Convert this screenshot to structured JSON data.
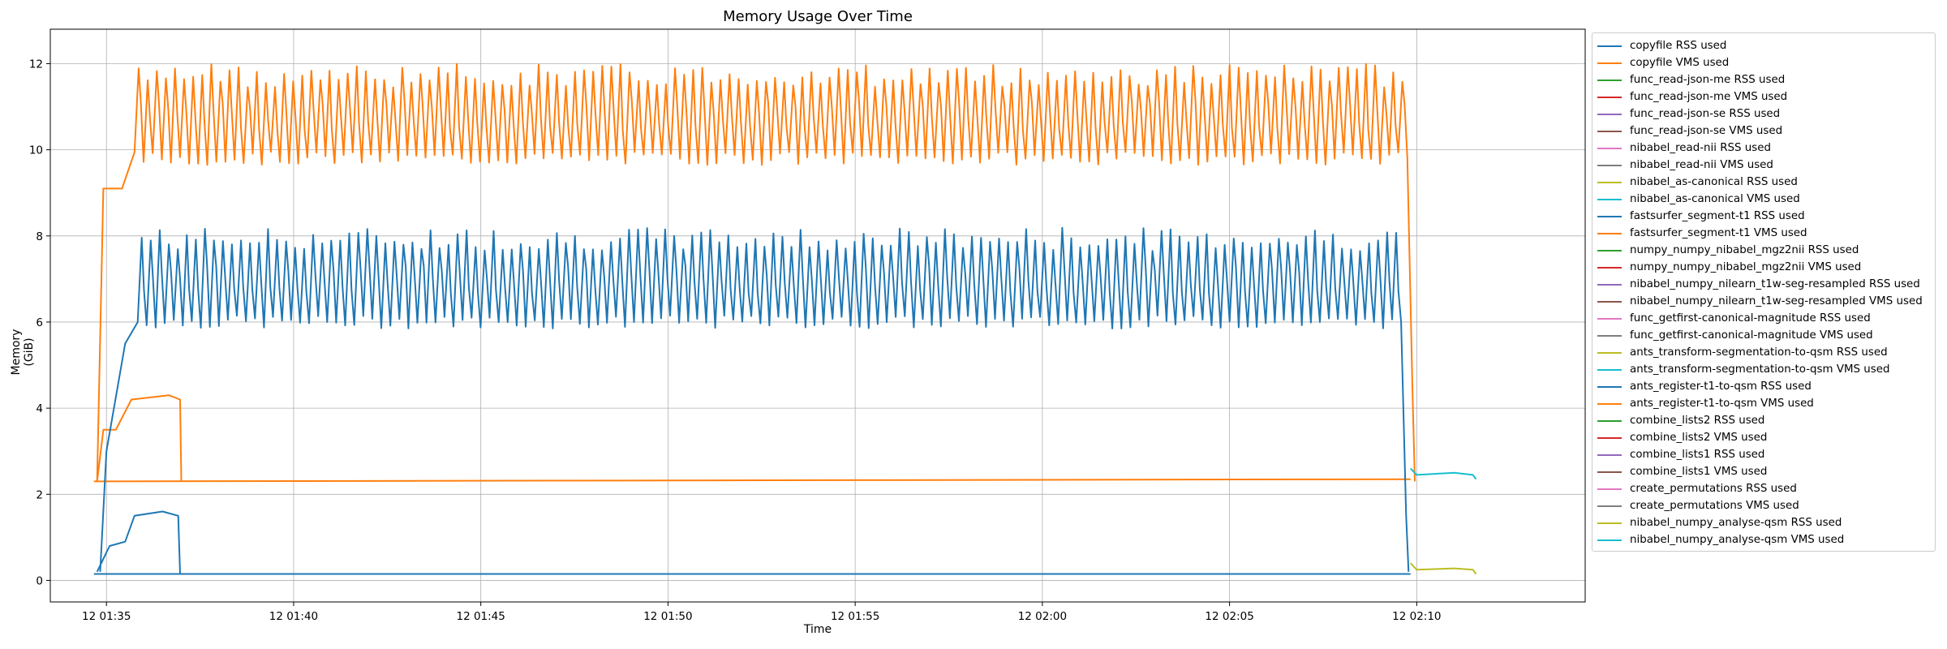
{
  "chart_data": {
    "type": "line",
    "title": "Memory Usage Over Time",
    "xlabel": "Time",
    "ylabel": "Memory (GiB)",
    "grid": true,
    "legend_position": "outside-right",
    "x_time_range": [
      "01:33:30",
      "02:14:30"
    ],
    "ylim": [
      -0.5,
      12.8
    ],
    "x_ticks": [
      "12 01:35",
      "12 01:40",
      "12 01:45",
      "12 01:50",
      "12 01:55",
      "12 02:00",
      "12 02:05",
      "12 02:10"
    ],
    "y_ticks": [
      0,
      2,
      4,
      6,
      8,
      10,
      12
    ],
    "series": [
      {
        "name": "copyfile RSS used",
        "color": "#1f77b4",
        "points": [
          [
            "01:34:40",
            0.15
          ],
          [
            "02:09:50",
            0.15
          ]
        ]
      },
      {
        "name": "copyfile VMS used",
        "color": "#ff7f0e",
        "points": [
          [
            "01:34:40",
            2.3
          ],
          [
            "02:09:50",
            2.35
          ]
        ]
      },
      {
        "name": "func_read-json-me RSS used",
        "color": "#2ca02c",
        "points": []
      },
      {
        "name": "func_read-json-me VMS used",
        "color": "#d62728",
        "points": []
      },
      {
        "name": "func_read-json-se RSS used",
        "color": "#9467bd",
        "points": []
      },
      {
        "name": "func_read-json-se VMS used",
        "color": "#8c564b",
        "points": []
      },
      {
        "name": "nibabel_read-nii RSS used",
        "color": "#e377c2",
        "points": []
      },
      {
        "name": "nibabel_read-nii VMS used",
        "color": "#7f7f7f",
        "points": []
      },
      {
        "name": "nibabel_as-canonical RSS used",
        "color": "#bcbd22",
        "points": []
      },
      {
        "name": "nibabel_as-canonical VMS used",
        "color": "#17becf",
        "points": []
      },
      {
        "name": "fastsurfer_segment-t1 RSS used",
        "color": "#1f77b4",
        "points": [
          [
            "01:34:45",
            0.2
          ],
          [
            "01:35:05",
            0.8
          ],
          [
            "01:35:30",
            0.9
          ],
          [
            "01:35:45",
            1.5
          ],
          [
            "01:36:30",
            1.6
          ],
          [
            "01:36:55",
            1.5
          ],
          [
            "01:36:58",
            0.15
          ]
        ]
      },
      {
        "name": "fastsurfer_segment-t1 VMS used",
        "color": "#ff7f0e",
        "points": [
          [
            "01:34:45",
            2.3
          ],
          [
            "01:34:55",
            3.5
          ],
          [
            "01:35:15",
            3.5
          ],
          [
            "01:35:40",
            4.2
          ],
          [
            "01:36:40",
            4.3
          ],
          [
            "01:36:58",
            4.2
          ],
          [
            "01:37:00",
            2.3
          ]
        ]
      },
      {
        "name": "numpy_numpy_nibabel_mgz2nii RSS used",
        "color": "#2ca02c",
        "points": []
      },
      {
        "name": "numpy_numpy_nibabel_mgz2nii VMS used",
        "color": "#d62728",
        "points": []
      },
      {
        "name": "nibabel_numpy_nilearn_t1w-seg-resampled RSS used",
        "color": "#9467bd",
        "points": []
      },
      {
        "name": "nibabel_numpy_nilearn_t1w-seg-resampled VMS used",
        "color": "#8c564b",
        "points": []
      },
      {
        "name": "func_getfirst-canonical-magnitude RSS used",
        "color": "#e377c2",
        "points": []
      },
      {
        "name": "func_getfirst-canonical-magnitude VMS used",
        "color": "#7f7f7f",
        "points": []
      },
      {
        "name": "ants_transform-segmentation-to-qsm RSS used",
        "color": "#bcbd22",
        "points": []
      },
      {
        "name": "ants_transform-segmentation-to-qsm VMS used",
        "color": "#17becf",
        "points": []
      },
      {
        "name": "ants_register-t1-to-qsm RSS used",
        "color": "#1f77b4",
        "oscillating": {
          "start": "01:34:50",
          "end": "02:09:35",
          "low": 6.0,
          "high": 8.2,
          "cycles": 140
        }
      },
      {
        "name": "ants_register-t1-to-qsm VMS used",
        "color": "#ff7f0e",
        "oscillating": {
          "start": "01:34:45",
          "end": "02:09:45",
          "low": 9.8,
          "high": 12.0,
          "cycles": 140
        }
      },
      {
        "name": "combine_lists2 RSS used",
        "color": "#2ca02c",
        "points": []
      },
      {
        "name": "combine_lists2 VMS used",
        "color": "#d62728",
        "points": []
      },
      {
        "name": "combine_lists1 RSS used",
        "color": "#9467bd",
        "points": []
      },
      {
        "name": "combine_lists1 VMS used",
        "color": "#8c564b",
        "points": []
      },
      {
        "name": "create_permutations RSS used",
        "color": "#e377c2",
        "points": []
      },
      {
        "name": "create_permutations VMS used",
        "color": "#7f7f7f",
        "points": []
      },
      {
        "name": "nibabel_numpy_analyse-qsm RSS used",
        "color": "#bcbd22",
        "points": [
          [
            "02:09:50",
            0.4
          ],
          [
            "02:10:00",
            0.25
          ],
          [
            "02:11:00",
            0.28
          ],
          [
            "02:11:30",
            0.25
          ],
          [
            "02:11:35",
            0.15
          ]
        ]
      },
      {
        "name": "nibabel_numpy_analyse-qsm VMS used",
        "color": "#17becf",
        "points": [
          [
            "02:09:50",
            2.6
          ],
          [
            "02:10:00",
            2.45
          ],
          [
            "02:11:00",
            2.5
          ],
          [
            "02:11:30",
            2.45
          ],
          [
            "02:11:35",
            2.35
          ]
        ]
      }
    ]
  }
}
